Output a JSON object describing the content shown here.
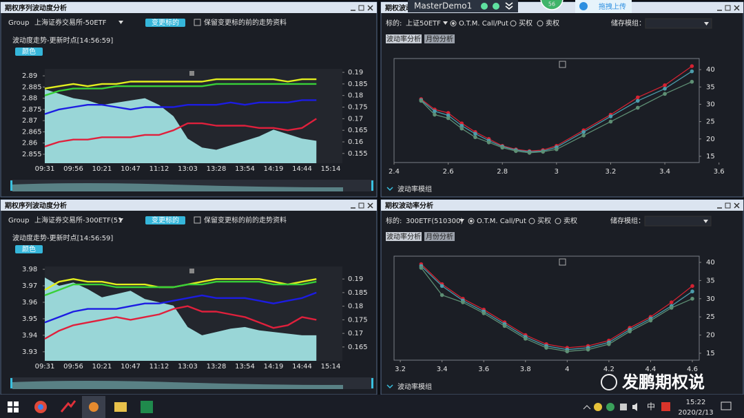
{
  "windows": [
    {
      "title": "期权序列波动度分析",
      "group_label": "Group",
      "group_value": "上海证券交易所-50ETF",
      "change_button": "变更标的",
      "keep_option": "保留变更标的前的走势资料",
      "chart_heading": "波动度走势-更新时点[14:56:59]",
      "color_button": "颜色"
    },
    {
      "title": "期权波动",
      "underlying_label": "标的:",
      "underlying_value": "上证50ETF",
      "otm_option": "O.T.M. Call/Put",
      "call_option": "买权",
      "put_option": "卖权",
      "storage_label": "储存模组：",
      "tab_vol": "波动率分析",
      "tab_month": "月份分析",
      "model_footer": "波动率模组"
    },
    {
      "title": "期权序列波动度分析",
      "group_label": "Group",
      "group_value": "上海证券交易所-300ETF(51",
      "change_button": "变更标的",
      "keep_option": "保留变更标的前的走势资料",
      "chart_heading": "波动度走势-更新时点[14:56:59]",
      "color_button": "颜色"
    },
    {
      "title": "期权波动率分析",
      "underlying_label": "标的:",
      "underlying_value": "300ETF(510300)",
      "otm_option": "O.T.M. Call/Put",
      "call_option": "买权",
      "put_option": "卖权",
      "storage_label": "储存模组：",
      "tab_vol": "波动率分析",
      "tab_month": "月份分析",
      "model_footer": "波动率模组"
    }
  ],
  "overlay": {
    "app_name": "MasterDemo1",
    "badge": "56",
    "upload_button": "拖拽上传"
  },
  "watermark": "发鹏期权说",
  "taskbar": {
    "ime": "中",
    "time": "15:22",
    "date": "2020/2/13"
  },
  "chart_data": [
    {
      "type": "line",
      "categories": [
        "09:31",
        null,
        "09:56",
        null,
        "10:21",
        null,
        "10:47",
        null,
        "11:12",
        null,
        "13:03",
        null,
        "13:28",
        null,
        "13:54",
        null,
        "14:19",
        null,
        "14:44",
        null,
        "15:14"
      ],
      "ylim": [
        2.851,
        2.8931
      ],
      "yticks": [
        2.855,
        2.86,
        2.865,
        2.87,
        2.875,
        2.88,
        2.885,
        2.89
      ],
      "y2lim": [
        0.1508,
        0.1915
      ],
      "y2ticks": [
        0.155,
        0.16,
        0.165,
        0.17,
        0.175,
        0.18,
        0.185,
        0.19
      ],
      "grid": false,
      "series": [
        {
          "kind": "area",
          "color": "#a6eaea",
          "values": [
            2.884,
            2.882,
            2.88,
            2.879,
            2.877,
            2.878,
            2.879,
            2.88,
            2.877,
            2.872,
            2.862,
            2.858,
            2.857,
            2.859,
            2.861,
            2.863,
            2.866,
            2.864,
            2.862,
            2.861,
            null
          ]
        },
        {
          "axis": "y2",
          "color": "#e3ef1e",
          "values": [
            0.183,
            0.184,
            0.185,
            0.184,
            0.185,
            0.185,
            0.186,
            0.186,
            0.186,
            0.186,
            0.186,
            0.186,
            0.187,
            0.187,
            0.187,
            0.187,
            0.187,
            0.186,
            0.187,
            0.187,
            null
          ]
        },
        {
          "axis": "y2",
          "color": "#38d038",
          "values": [
            0.18,
            0.182,
            0.183,
            0.183,
            0.183,
            0.184,
            0.184,
            0.184,
            0.184,
            0.184,
            0.184,
            0.184,
            0.185,
            0.185,
            0.185,
            0.185,
            0.185,
            0.185,
            0.185,
            0.185,
            null
          ]
        },
        {
          "axis": "y2",
          "color": "#1c1ce2",
          "values": [
            0.172,
            0.174,
            0.175,
            0.176,
            0.176,
            0.175,
            0.174,
            0.175,
            0.175,
            0.175,
            0.176,
            0.176,
            0.176,
            0.177,
            0.176,
            0.177,
            0.177,
            0.177,
            0.178,
            0.178,
            null
          ]
        },
        {
          "axis": "y2",
          "color": "#e0203c",
          "values": [
            0.158,
            0.16,
            0.161,
            0.161,
            0.162,
            0.162,
            0.162,
            0.163,
            0.163,
            0.165,
            0.168,
            0.168,
            0.167,
            0.167,
            0.167,
            0.166,
            0.166,
            0.165,
            0.166,
            0.17,
            null
          ]
        }
      ]
    },
    {
      "type": "smile",
      "x": [
        2.5,
        2.55,
        2.6,
        2.65,
        2.7,
        2.75,
        2.8,
        2.85,
        2.9,
        2.95,
        3.0,
        3.1,
        3.2,
        3.3,
        3.4,
        3.5
      ],
      "xlim": [
        2.4,
        3.527
      ],
      "xticks": [
        2.4,
        2.6,
        2.8,
        3,
        3.2,
        3.4,
        3.6
      ],
      "ylim": [
        13.2,
        43.2
      ],
      "yticks": [
        15,
        20,
        25,
        30,
        35,
        40
      ],
      "grid": false,
      "series": [
        {
          "color": "#d42232",
          "values": [
            31.5,
            28.5,
            27.5,
            24.5,
            22,
            20,
            18,
            17,
            16.5,
            16.8,
            18,
            22.5,
            27,
            32,
            35.5,
            41
          ]
        },
        {
          "color": "#4c9cab",
          "values": [
            31.2,
            28,
            26.8,
            23.8,
            21.5,
            19.5,
            17.8,
            16.8,
            16.3,
            16.5,
            17.6,
            22,
            26.5,
            31,
            34.5,
            39.5
          ]
        },
        {
          "color": "#5e8f74",
          "values": [
            31,
            27,
            26,
            23,
            20.5,
            19,
            17.5,
            16.5,
            16,
            16.3,
            17,
            21,
            25,
            29,
            33,
            36.5
          ]
        }
      ]
    },
    {
      "type": "line",
      "categories": [
        "09:31",
        null,
        "09:56",
        null,
        "10:21",
        null,
        "10:47",
        null,
        "11:12",
        null,
        "13:03",
        null,
        "13:28",
        null,
        "13:54",
        null,
        "14:19",
        null,
        "14:44",
        null,
        "15:14"
      ],
      "ylim": [
        3.9245,
        3.9817
      ],
      "yticks": [
        3.93,
        3.94,
        3.95,
        3.96,
        3.97,
        3.98
      ],
      "y2lim": [
        0.1599,
        0.1946
      ],
      "y2ticks": [
        0.165,
        0.17,
        0.175,
        0.18,
        0.185,
        0.19
      ],
      "grid": false,
      "series": [
        {
          "kind": "area",
          "color": "#a6eaea",
          "values": [
            3.975,
            3.97,
            3.972,
            3.968,
            3.963,
            3.965,
            3.967,
            3.962,
            3.96,
            3.958,
            3.945,
            3.94,
            3.942,
            3.944,
            3.945,
            3.943,
            3.942,
            3.941,
            3.94,
            3.94,
            null
          ]
        },
        {
          "axis": "y2",
          "color": "#e3ef1e",
          "values": [
            0.186,
            0.189,
            0.19,
            0.189,
            0.189,
            0.188,
            0.188,
            0.188,
            0.187,
            0.187,
            0.188,
            0.189,
            0.19,
            0.19,
            0.19,
            0.19,
            0.189,
            0.188,
            0.189,
            0.19,
            null
          ]
        },
        {
          "axis": "y2",
          "color": "#38d038",
          "values": [
            0.184,
            0.186,
            0.188,
            0.188,
            0.188,
            0.187,
            0.187,
            0.187,
            0.187,
            0.187,
            0.188,
            0.188,
            0.189,
            0.189,
            0.189,
            0.189,
            0.188,
            0.188,
            0.188,
            0.189,
            null
          ]
        },
        {
          "axis": "y2",
          "color": "#1c1ce2",
          "values": [
            0.174,
            0.176,
            0.178,
            0.179,
            0.179,
            0.179,
            0.18,
            0.181,
            0.181,
            0.182,
            0.183,
            0.184,
            0.183,
            0.183,
            0.183,
            0.182,
            0.181,
            0.182,
            0.183,
            0.185,
            null
          ]
        },
        {
          "axis": "y2",
          "color": "#e0203c",
          "values": [
            0.168,
            0.171,
            0.173,
            0.174,
            0.175,
            0.176,
            0.175,
            0.176,
            0.177,
            0.179,
            0.18,
            0.178,
            0.178,
            0.177,
            0.176,
            0.174,
            0.172,
            0.173,
            0.176,
            0.175,
            null
          ]
        }
      ]
    },
    {
      "type": "smile",
      "x": [
        3.3,
        3.4,
        3.5,
        3.6,
        3.7,
        3.8,
        3.9,
        4.0,
        4.1,
        4.2,
        4.3,
        4.4,
        4.5,
        4.6
      ],
      "xlim": [
        3.17,
        4.633
      ],
      "xticks": [
        3.2,
        3.4,
        3.6,
        3.8,
        4,
        4.2,
        4.4,
        4.6
      ],
      "ylim": [
        13.1,
        41.7
      ],
      "yticks": [
        15,
        20,
        25,
        30,
        35,
        40
      ],
      "grid": false,
      "series": [
        {
          "color": "#d42232",
          "values": [
            39.5,
            34,
            30,
            27,
            23.5,
            20,
            17.5,
            16.5,
            17,
            18.5,
            22,
            25,
            29,
            33.5
          ]
        },
        {
          "color": "#4c9cab",
          "values": [
            39,
            33.5,
            29.5,
            26.5,
            23,
            19.5,
            17,
            16,
            16.5,
            18,
            21.5,
            24.5,
            28,
            32
          ]
        },
        {
          "color": "#5e8f74",
          "values": [
            38.5,
            31,
            29,
            26,
            22.5,
            19,
            16.5,
            15.5,
            16,
            17.5,
            21,
            24,
            27.5,
            30
          ]
        }
      ]
    }
  ]
}
